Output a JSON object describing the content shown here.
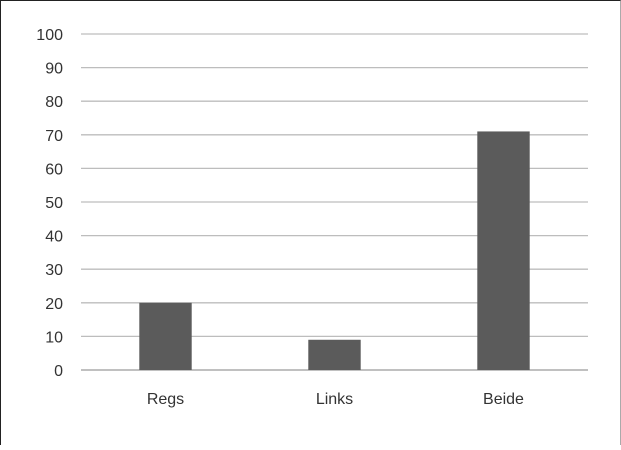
{
  "chart_data": {
    "type": "bar",
    "categories": [
      "Regs",
      "Links",
      "Beide"
    ],
    "values": [
      20,
      9,
      71
    ],
    "title": "",
    "xlabel": "",
    "ylabel": "",
    "ylim": [
      0,
      100
    ],
    "yticks": [
      0,
      10,
      20,
      30,
      40,
      50,
      60,
      70,
      80,
      90,
      100
    ],
    "grid": true,
    "legend": "none",
    "bar_color": "#5b5b5b",
    "grid_color": "#bdbdbd",
    "axis_color": "#9a9a9a",
    "label_color": "#333333"
  }
}
